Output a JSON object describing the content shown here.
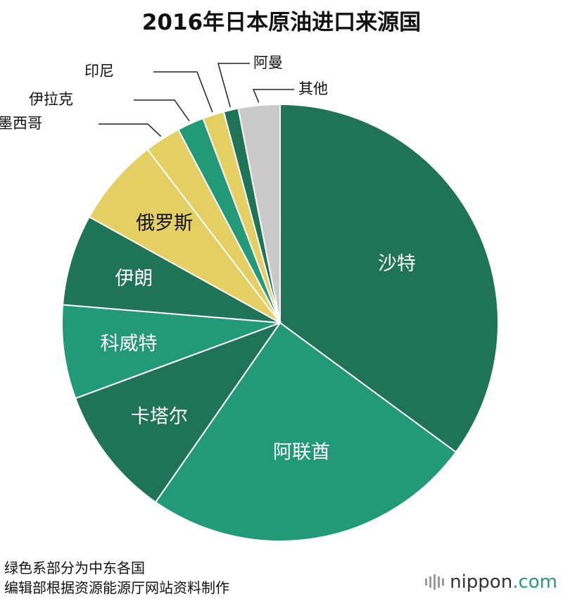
{
  "title": "2016年日本原油进口来源国",
  "chart_data": {
    "type": "pie",
    "title": "2016年日本原油进口来源国",
    "start_angle_deg": 0,
    "direction": "clockwise",
    "slices": [
      {
        "label": "沙特",
        "value": 35.4,
        "color": "#1f7357",
        "label_style": "inside"
      },
      {
        "label": "阿联酋",
        "value": 24.8,
        "color": "#229a77",
        "label_style": "inside"
      },
      {
        "label": "卡塔尔",
        "value": 9.8,
        "color": "#1f7357",
        "label_style": "inside"
      },
      {
        "label": "科威特",
        "value": 7.0,
        "color": "#229a77",
        "label_style": "inside"
      },
      {
        "label": "伊朗",
        "value": 6.8,
        "color": "#1f7357",
        "label_style": "inside"
      },
      {
        "label": "俄罗斯",
        "value": 6.6,
        "color": "#e3cf62",
        "label_style": "inside-dark"
      },
      {
        "label": "墨西哥",
        "value": 2.7,
        "color": "#e3cf62",
        "label_style": "callout"
      },
      {
        "label": "伊拉克",
        "value": 2.0,
        "color": "#229a77",
        "label_style": "callout"
      },
      {
        "label": "印尼",
        "value": 1.6,
        "color": "#e3cf62",
        "label_style": "callout"
      },
      {
        "label": "阿曼",
        "value": 1.1,
        "color": "#1f7357",
        "label_style": "callout"
      },
      {
        "label": "其他",
        "value": 3.1,
        "color": "#c9c9c9",
        "label_style": "callout"
      }
    ]
  },
  "notes": {
    "line1": "绿色系部分为中东各国",
    "line2": "编辑部根据资源能源厅网站资料制作"
  },
  "brand": {
    "name": "nippon",
    "suffix": ".com",
    "accent_color": "#2b9a7a"
  }
}
